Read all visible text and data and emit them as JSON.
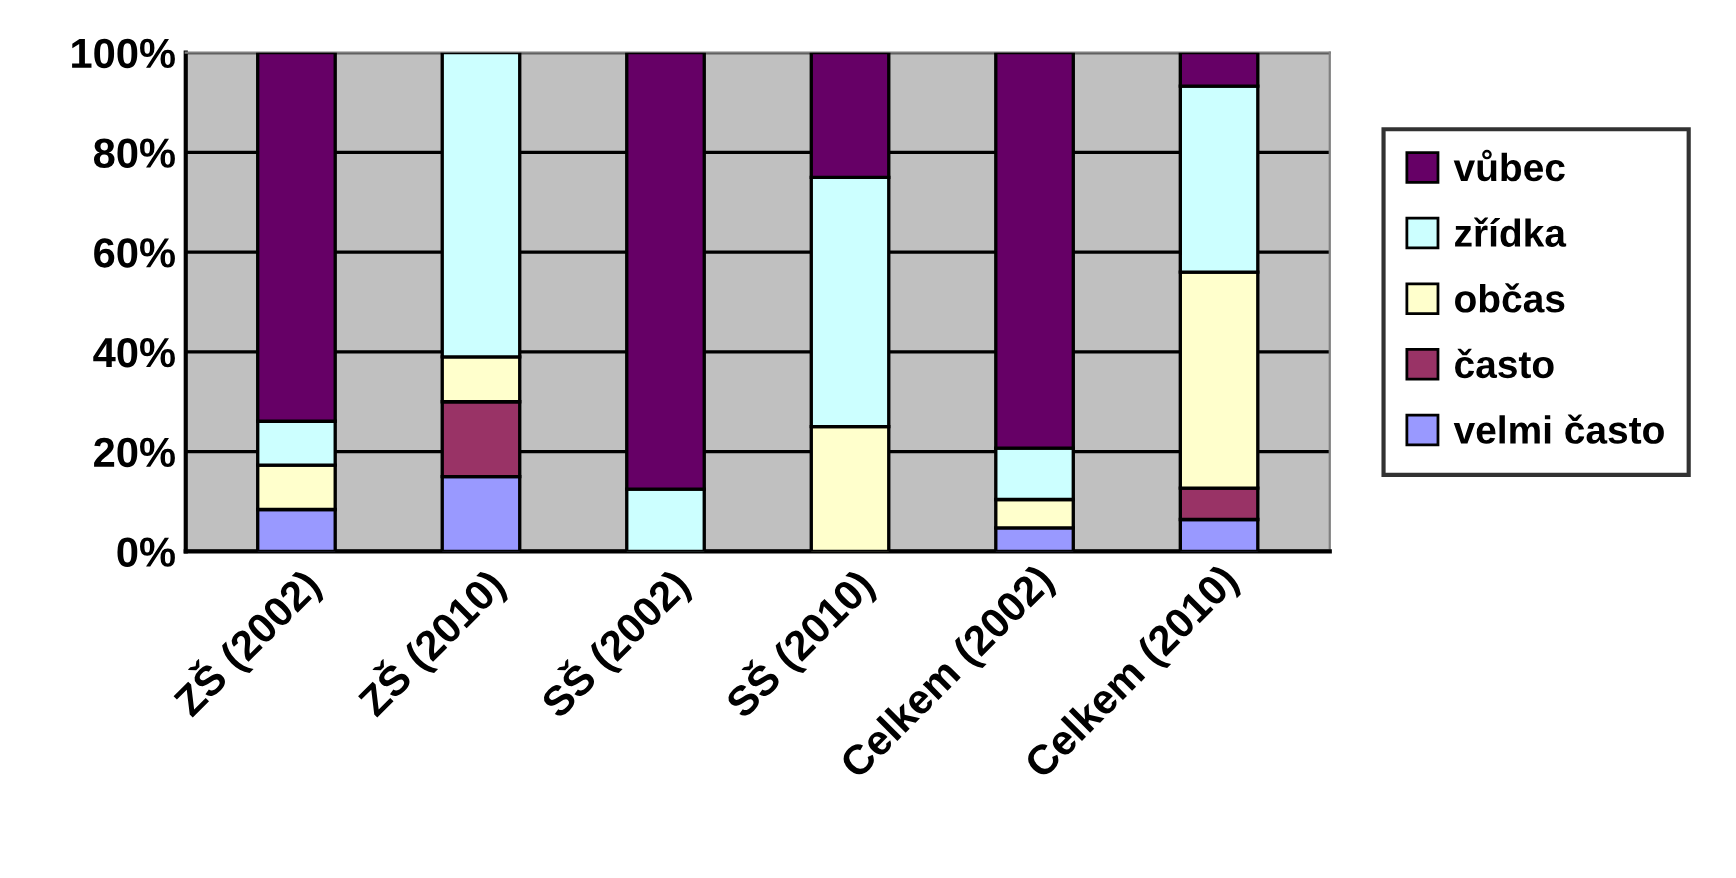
{
  "chart_data": {
    "type": "bar",
    "stacked": true,
    "categories": [
      "ZŠ (2002)",
      "ZŠ (2010)",
      "SŠ (2002)",
      "SŠ (2010)",
      "Celkem (2002)",
      "Celkem (2010)"
    ],
    "series": [
      {
        "name": "velmi často",
        "color": "#9999ff",
        "values": [
          8.4,
          15,
          0,
          0,
          4.7,
          6.4
        ]
      },
      {
        "name": "často",
        "color": "#993366",
        "values": [
          0,
          15,
          0,
          0,
          0,
          6.3
        ]
      },
      {
        "name": "občas",
        "color": "#ffffcc",
        "values": [
          8.9,
          9,
          0,
          25,
          5.7,
          43.3
        ]
      },
      {
        "name": "zřídka",
        "color": "#ccffff",
        "values": [
          8.8,
          61,
          12.5,
          50,
          10.3,
          37.3
        ]
      },
      {
        "name": "vůbec",
        "color": "#660066",
        "values": [
          73.9,
          0,
          87.5,
          25,
          79.3,
          6.7
        ]
      }
    ],
    "ylim": [
      0,
      100
    ],
    "yticks": [
      {
        "value": 0,
        "label": "0%"
      },
      {
        "value": 20,
        "label": "20%"
      },
      {
        "value": 40,
        "label": "40%"
      },
      {
        "value": 60,
        "label": "60%"
      },
      {
        "value": 80,
        "label": "80%"
      },
      {
        "value": 100,
        "label": "100%"
      }
    ],
    "grid": "y",
    "legend": "right"
  }
}
